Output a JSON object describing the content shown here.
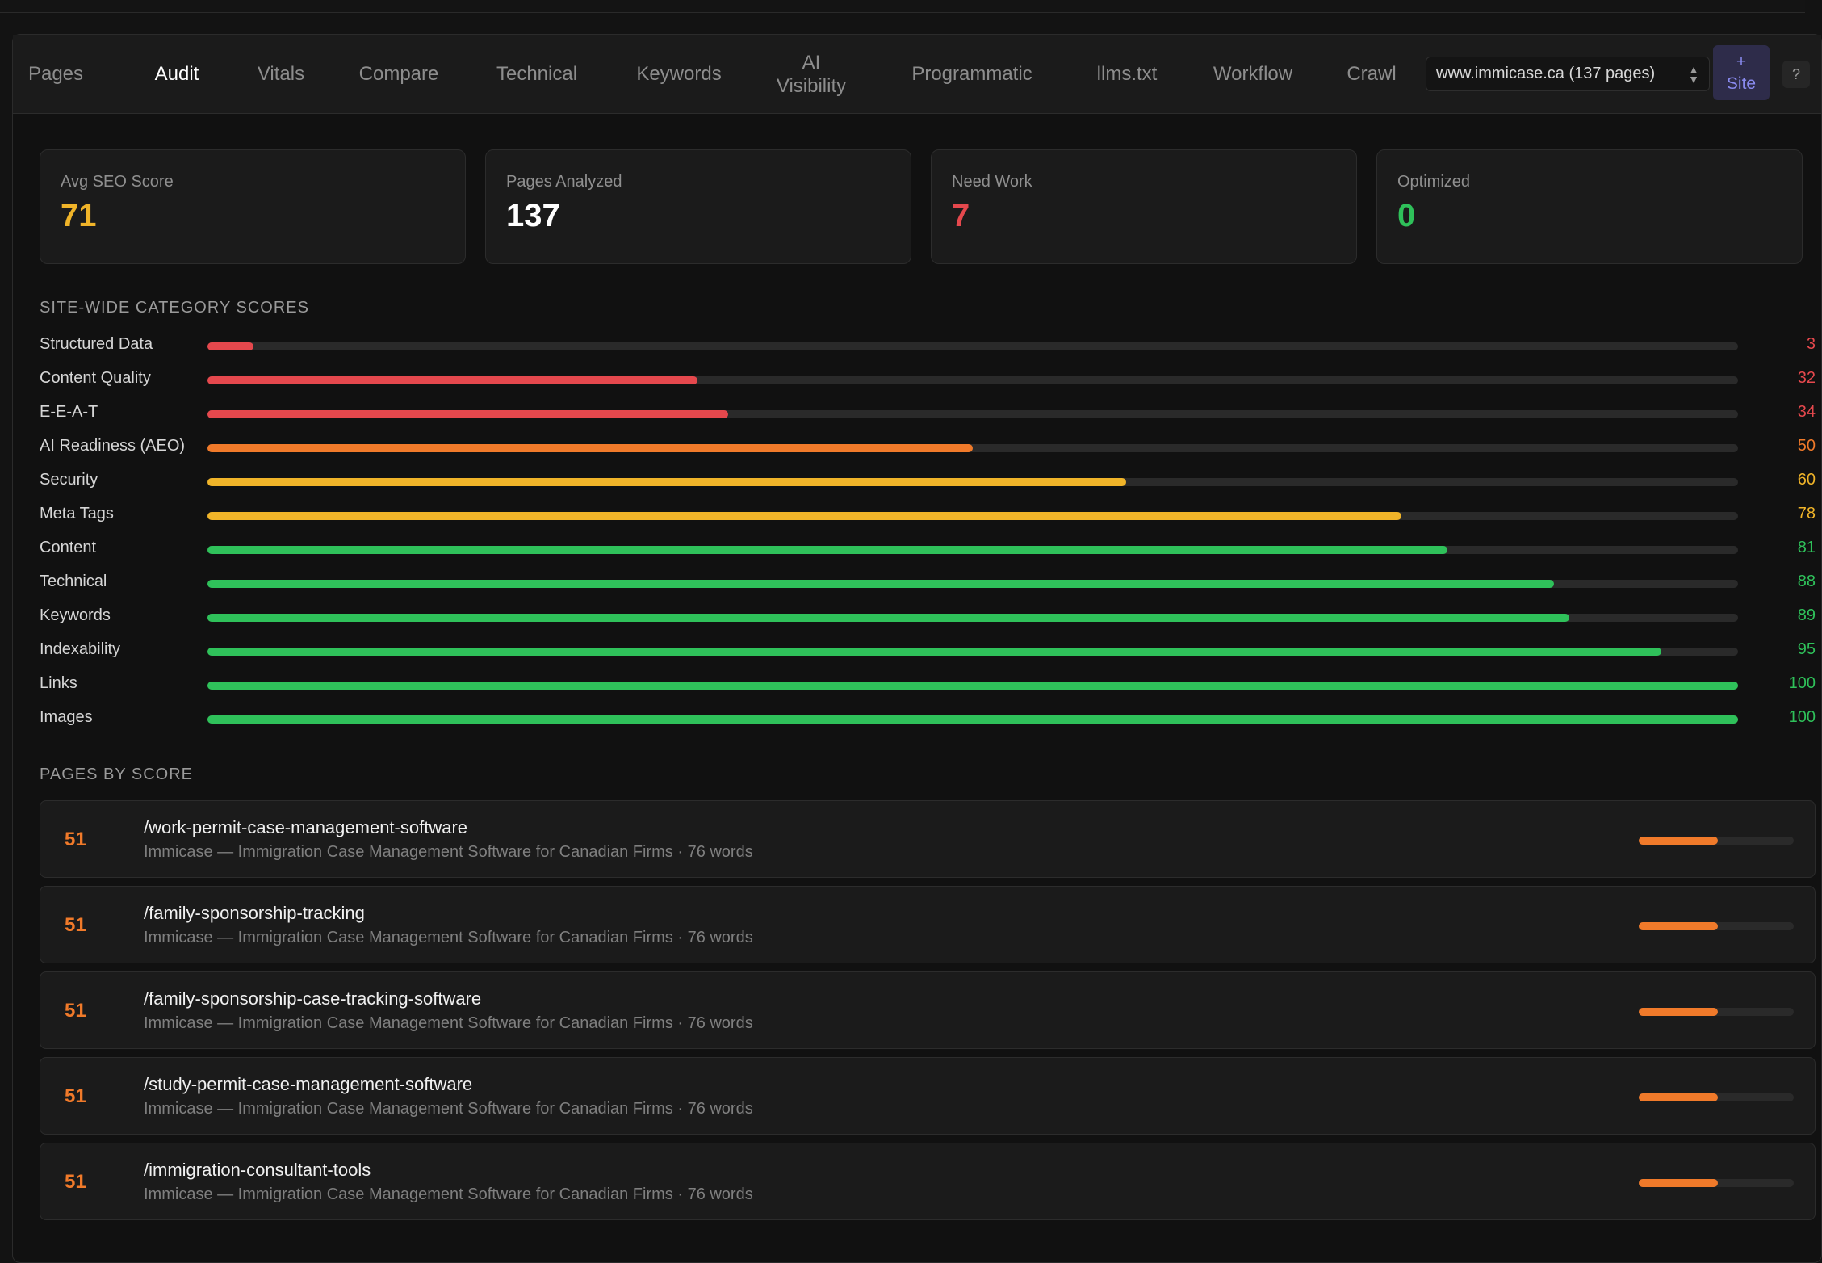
{
  "tabs": [
    {
      "label": "Pages",
      "active": false
    },
    {
      "label": "Audit",
      "active": true
    },
    {
      "label": "Vitals",
      "active": false
    },
    {
      "label": "Compare",
      "active": false
    },
    {
      "label": "Technical",
      "active": false
    },
    {
      "label": "Keywords",
      "active": false
    },
    {
      "label": "AI Visibility",
      "active": false
    },
    {
      "label": "Programmatic",
      "active": false
    },
    {
      "label": "llms.txt",
      "active": false
    },
    {
      "label": "Workflow",
      "active": false
    },
    {
      "label": "Crawl",
      "active": false
    }
  ],
  "site_selector": {
    "value": "www.immicase.ca (137 pages)"
  },
  "add_site": {
    "plus": "+",
    "label": "Site"
  },
  "help": {
    "label": "?"
  },
  "colors": {
    "red": "#e5484d",
    "orange": "#f07a2a",
    "yellow": "#f0b429",
    "green": "#2fc15a",
    "white": "#ffffff"
  },
  "stats": [
    {
      "label": "Avg SEO Score",
      "value": "71",
      "color": "#f0b429"
    },
    {
      "label": "Pages Analyzed",
      "value": "137",
      "color": "#ffffff"
    },
    {
      "label": "Need Work",
      "value": "7",
      "color": "#e5484d"
    },
    {
      "label": "Optimized",
      "value": "0",
      "color": "#2fc15a"
    }
  ],
  "category_section": {
    "title": "SITE-WIDE CATEGORY SCORES"
  },
  "categories": [
    {
      "name": "Structured Data",
      "score": 3,
      "color": "#e5484d"
    },
    {
      "name": "Content Quality",
      "score": 32,
      "color": "#e5484d"
    },
    {
      "name": "E-E-A-T",
      "score": 34,
      "color": "#e5484d"
    },
    {
      "name": "AI Readiness (AEO)",
      "score": 50,
      "color": "#f07a2a"
    },
    {
      "name": "Security",
      "score": 60,
      "color": "#f0b429"
    },
    {
      "name": "Meta Tags",
      "score": 78,
      "color": "#f0b429"
    },
    {
      "name": "Content",
      "score": 81,
      "color": "#2fc15a"
    },
    {
      "name": "Technical",
      "score": 88,
      "color": "#2fc15a"
    },
    {
      "name": "Keywords",
      "score": 89,
      "color": "#2fc15a"
    },
    {
      "name": "Indexability",
      "score": 95,
      "color": "#2fc15a"
    },
    {
      "name": "Links",
      "score": 100,
      "color": "#2fc15a"
    },
    {
      "name": "Images",
      "score": 100,
      "color": "#2fc15a"
    }
  ],
  "pages_section": {
    "title": "PAGES BY SCORE"
  },
  "pages": [
    {
      "score": "51",
      "path": "/work-permit-case-management-software",
      "meta": "Immicase — Immigration Case Management Software for Canadian Firms · 76 words",
      "progress": 0.51
    },
    {
      "score": "51",
      "path": "/family-sponsorship-tracking",
      "meta": "Immicase — Immigration Case Management Software for Canadian Firms · 76 words",
      "progress": 0.51
    },
    {
      "score": "51",
      "path": "/family-sponsorship-case-tracking-software",
      "meta": "Immicase — Immigration Case Management Software for Canadian Firms · 76 words",
      "progress": 0.51
    },
    {
      "score": "51",
      "path": "/study-permit-case-management-software",
      "meta": "Immicase — Immigration Case Management Software for Canadian Firms · 76 words",
      "progress": 0.51
    },
    {
      "score": "51",
      "path": "/immigration-consultant-tools",
      "meta": "Immicase — Immigration Case Management Software for Canadian Firms · 76 words",
      "progress": 0.51
    }
  ]
}
